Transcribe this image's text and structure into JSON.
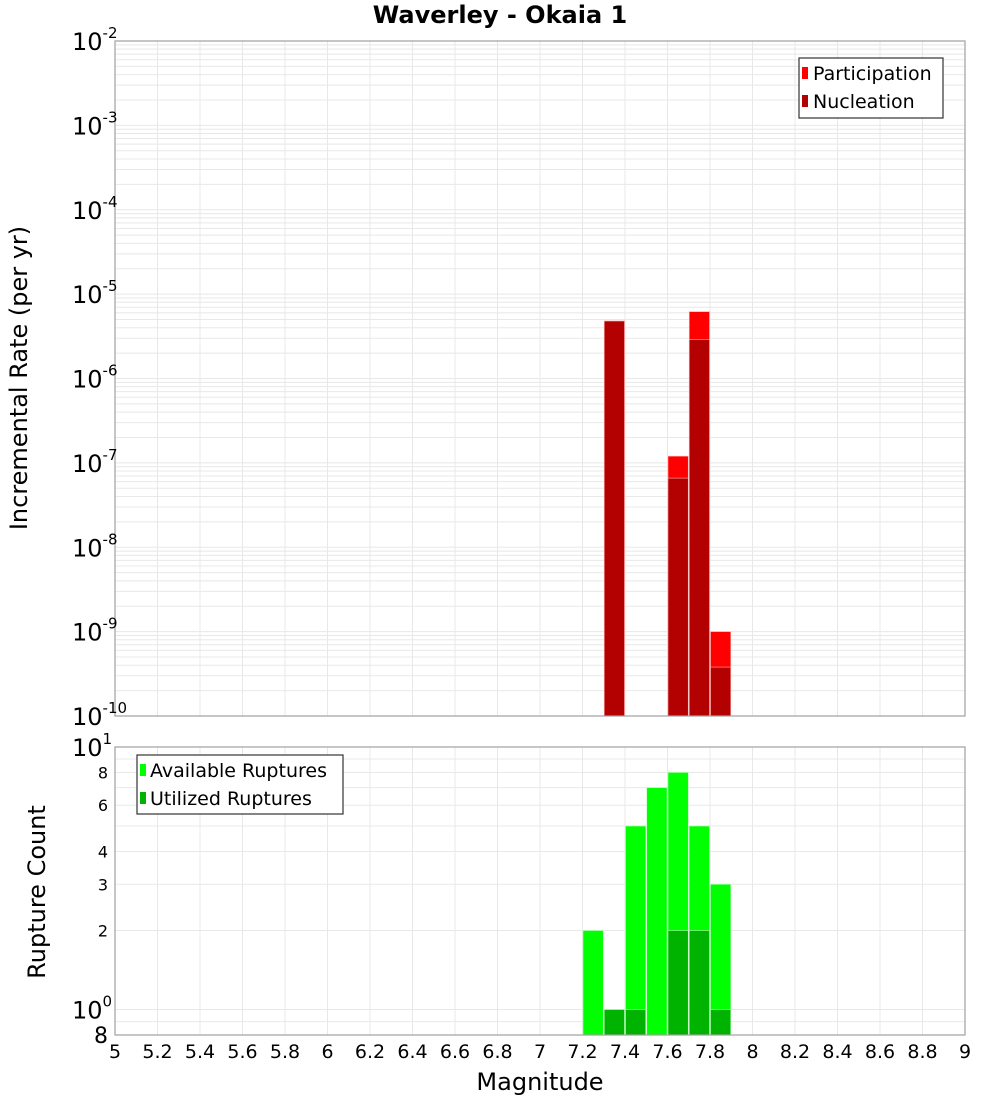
{
  "chart_data": [
    {
      "type": "bar",
      "title": "Waverley - Okaia 1",
      "xlabel": "",
      "ylabel": "Incremental Rate (per yr)",
      "yscale": "log",
      "ylim": [
        1e-10,
        0.01
      ],
      "xlim": [
        5,
        9
      ],
      "grid": true,
      "legend_position": "top-right",
      "y_tick_labels": [
        "10^-2",
        "10^-3",
        "10^-4",
        "10^-5",
        "10^-6",
        "10^-7",
        "10^-8",
        "10^-9",
        "10^-10"
      ],
      "bar_width": 0.1,
      "categories": [
        7.35,
        7.65,
        7.75,
        7.85
      ],
      "series": [
        {
          "name": "Participation",
          "color": "#ff0000",
          "values": [
            4.8e-06,
            1.2e-07,
            6.2e-06,
            1e-09
          ]
        },
        {
          "name": "Nucleation",
          "color": "#b30000",
          "values": [
            4.8e-06,
            6.6e-08,
            2.9e-06,
            3.8e-10
          ]
        }
      ]
    },
    {
      "type": "bar",
      "title": "",
      "xlabel": "Magnitude",
      "ylabel": "Rupture Count",
      "yscale": "log",
      "ylim": [
        0.8,
        10
      ],
      "xlim": [
        5,
        9
      ],
      "grid": true,
      "legend_position": "top-left",
      "y_tick_labels": [
        "10^1",
        "8",
        "6",
        "4",
        "3",
        "2",
        "10^0",
        "8"
      ],
      "x_tick_labels": [
        "5",
        "5.2",
        "5.4",
        "5.6",
        "5.8",
        "6",
        "6.2",
        "6.4",
        "6.6",
        "6.8",
        "7",
        "7.2",
        "7.4",
        "7.6",
        "7.8",
        "8",
        "8.2",
        "8.4",
        "8.6",
        "8.8",
        "9"
      ],
      "bar_width": 0.1,
      "categories": [
        7.25,
        7.35,
        7.45,
        7.55,
        7.65,
        7.75,
        7.85
      ],
      "series": [
        {
          "name": "Available Ruptures",
          "color": "#00ff00",
          "values": [
            2,
            1,
            5,
            7,
            8,
            5,
            3
          ]
        },
        {
          "name": "Utilized Ruptures",
          "color": "#00b300",
          "values": [
            0,
            1,
            1,
            0,
            2,
            2,
            1
          ]
        }
      ]
    }
  ],
  "labels": {
    "title": "Waverley - Okaia 1",
    "top_ylabel": "Incremental Rate (per yr)",
    "bottom_ylabel": "Rupture Count",
    "xlabel": "Magnitude",
    "legend_participation": "Participation",
    "legend_nucleation": "Nucleation",
    "legend_available": "Available Ruptures",
    "legend_utilized": "Utilized Ruptures"
  }
}
